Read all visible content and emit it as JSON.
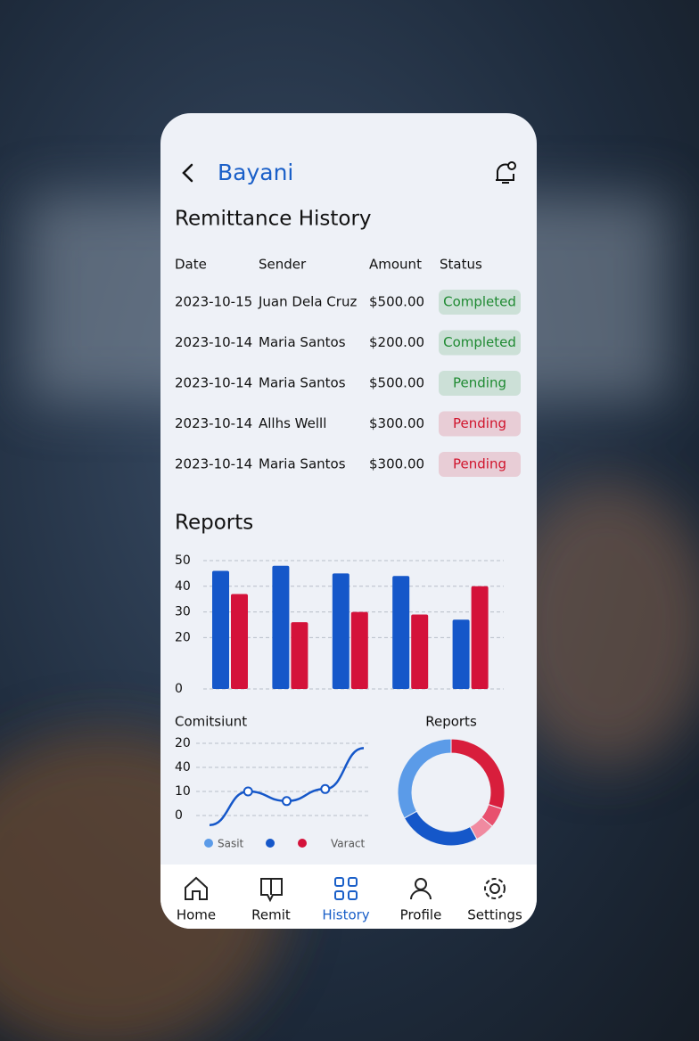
{
  "header": {
    "title": "Bayani"
  },
  "history": {
    "title": "Remittance History",
    "columns": [
      "Date",
      "Sender",
      "Amount",
      "Status"
    ],
    "rows": [
      {
        "date": "2023-10-15",
        "sender": "Juan Dela Cruz",
        "amount": "$500.00",
        "status": "Completed",
        "color": "#1f8a32"
      },
      {
        "date": "2023-10-14",
        "sender": "Maria Santos",
        "amount": "$200.00",
        "status": "Completed",
        "color": "#1f8a32"
      },
      {
        "date": "2023-10-14",
        "sender": "Maria Santos",
        "amount": "$500.00",
        "status": "Pending",
        "color": "#1f8a32"
      },
      {
        "date": "2023-10-14",
        "sender": "Allhs Welll",
        "amount": "$300.00",
        "status": "Pending",
        "color": "#d0142c"
      },
      {
        "date": "2023-10-14",
        "sender": "Maria Santos",
        "amount": "$300.00",
        "status": "Pending",
        "color": "#d0142c"
      }
    ]
  },
  "reports_title": "Reports",
  "chart_data": [
    {
      "type": "bar",
      "categories": [
        null,
        null,
        null,
        null,
        null
      ],
      "series": [
        {
          "color": "#1557c9",
          "values": [
            46,
            48,
            45,
            44,
            27
          ]
        },
        {
          "color": "#d4123a",
          "values": [
            37,
            26,
            30,
            29,
            40
          ]
        }
      ],
      "ylim": [
        0,
        50
      ],
      "yticks": [
        0,
        20,
        30,
        40,
        50
      ],
      "grid": true
    },
    {
      "type": "line",
      "title": "Comitsiunt",
      "categories": [
        null,
        null,
        null,
        null,
        null
      ],
      "series": [
        {
          "color": "#1557c9",
          "values": [
            -4,
            10,
            6,
            11,
            28
          ]
        }
      ],
      "ylim": [
        -5,
        30
      ],
      "ylabels": [
        "20",
        "40",
        "10",
        "0"
      ],
      "grid": true,
      "legend": [
        {
          "name": "Sasit",
          "color": "#5b9be8"
        },
        {
          "color": "#1557c9"
        },
        {
          "color": "#d4123a"
        },
        {
          "name": "Varact"
        }
      ]
    },
    {
      "type": "pie",
      "title": "Reports",
      "values": [
        30,
        6,
        6,
        25,
        33
      ],
      "colors": [
        "#d81e3c",
        "#e8506e",
        "#f08aa0",
        "#1557c9",
        "#5b9be8"
      ]
    }
  ],
  "nav": {
    "items": [
      "Home",
      "Remit",
      "History",
      "Profile",
      "Settings"
    ],
    "active": "History"
  }
}
